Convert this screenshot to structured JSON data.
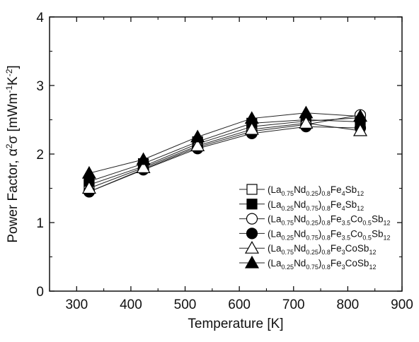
{
  "chart_data": {
    "type": "line",
    "xlabel": "Temperature [K]",
    "ylabel": "Power Factor, α²σ [mWm⁻¹K⁻²]",
    "xlim": [
      250,
      900
    ],
    "ylim": [
      0,
      4
    ],
    "xticks": [
      300,
      400,
      500,
      600,
      700,
      800,
      900
    ],
    "yticks": [
      0,
      1,
      2,
      3,
      4
    ],
    "legend_position": "lower-right",
    "x": [
      323,
      423,
      523,
      623,
      723,
      823
    ],
    "series": [
      {
        "name": "(La0.75Nd0.25)0.8Fe4Sb12",
        "marker": "open-square",
        "values": [
          1.55,
          1.82,
          2.15,
          2.4,
          2.48,
          2.53
        ],
        "name_parts": [
          [
            "La",
            "n"
          ],
          [
            "0.75",
            "s"
          ],
          [
            "Nd",
            "n"
          ],
          [
            "0.25",
            "s"
          ],
          [
            ")",
            "n"
          ],
          [
            "0.8",
            "s"
          ],
          [
            "Fe",
            "n"
          ],
          [
            "4",
            "s"
          ],
          [
            "Sb",
            "n"
          ],
          [
            "12",
            "s"
          ]
        ]
      },
      {
        "name": "(La0.25Nd0.75)0.8Fe4Sb12",
        "marker": "filled-square",
        "values": [
          1.6,
          1.86,
          2.18,
          2.45,
          2.5,
          2.47
        ],
        "name_parts": [
          [
            "La",
            "n"
          ],
          [
            "0.25",
            "s"
          ],
          [
            "Nd",
            "n"
          ],
          [
            "0.75",
            "s"
          ],
          [
            ")",
            "n"
          ],
          [
            "0.8",
            "s"
          ],
          [
            "Fe",
            "n"
          ],
          [
            "4",
            "s"
          ],
          [
            "Sb",
            "n"
          ],
          [
            "12",
            "s"
          ]
        ]
      },
      {
        "name": "(La0.75Nd0.25)0.8Fe3.5Co0.5Sb12",
        "marker": "open-circle",
        "values": [
          1.45,
          1.78,
          2.1,
          2.33,
          2.43,
          2.57
        ],
        "name_parts": [
          [
            "La",
            "n"
          ],
          [
            "0.75",
            "s"
          ],
          [
            "Nd",
            "n"
          ],
          [
            "0.25",
            "s"
          ],
          [
            ")",
            "n"
          ],
          [
            "0.8",
            "s"
          ],
          [
            "Fe",
            "n"
          ],
          [
            "3.5",
            "s"
          ],
          [
            "Co",
            "n"
          ],
          [
            "0.5",
            "s"
          ],
          [
            "Sb",
            "n"
          ],
          [
            "12",
            "s"
          ]
        ]
      },
      {
        "name": "(La0.25Nd0.75)0.8Fe3.5Co0.5Sb12",
        "marker": "filled-circle",
        "values": [
          1.45,
          1.77,
          2.08,
          2.3,
          2.4,
          2.38
        ],
        "name_parts": [
          [
            "La",
            "n"
          ],
          [
            "0.25",
            "s"
          ],
          [
            "Nd",
            "n"
          ],
          [
            "0.75",
            "s"
          ],
          [
            ")",
            "n"
          ],
          [
            "0.8",
            "s"
          ],
          [
            "Fe",
            "n"
          ],
          [
            "3.5",
            "s"
          ],
          [
            "Co",
            "n"
          ],
          [
            "0.5",
            "s"
          ],
          [
            "Sb",
            "n"
          ],
          [
            "12",
            "s"
          ]
        ]
      },
      {
        "name": "(La0.75Nd0.25)0.8Fe3CoSb12",
        "marker": "open-triangle",
        "values": [
          1.5,
          1.8,
          2.12,
          2.36,
          2.45,
          2.34
        ],
        "name_parts": [
          [
            "La",
            "n"
          ],
          [
            "0.75",
            "s"
          ],
          [
            "Nd",
            "n"
          ],
          [
            "0.25",
            "s"
          ],
          [
            ")",
            "n"
          ],
          [
            "0.8",
            "s"
          ],
          [
            "Fe",
            "n"
          ],
          [
            "3",
            "s"
          ],
          [
            "CoSb",
            "n"
          ],
          [
            "12",
            "s"
          ]
        ]
      },
      {
        "name": "(La0.25Nd0.75)0.8Fe3CoSb12",
        "marker": "filled-triangle",
        "values": [
          1.72,
          1.92,
          2.25,
          2.52,
          2.6,
          2.55
        ],
        "name_parts": [
          [
            "La",
            "n"
          ],
          [
            "0.25",
            "s"
          ],
          [
            "Nd",
            "n"
          ],
          [
            "0.75",
            "s"
          ],
          [
            ")",
            "n"
          ],
          [
            "0.8",
            "s"
          ],
          [
            "Fe",
            "n"
          ],
          [
            "3",
            "s"
          ],
          [
            "CoSb",
            "n"
          ],
          [
            "12",
            "s"
          ]
        ]
      }
    ]
  }
}
